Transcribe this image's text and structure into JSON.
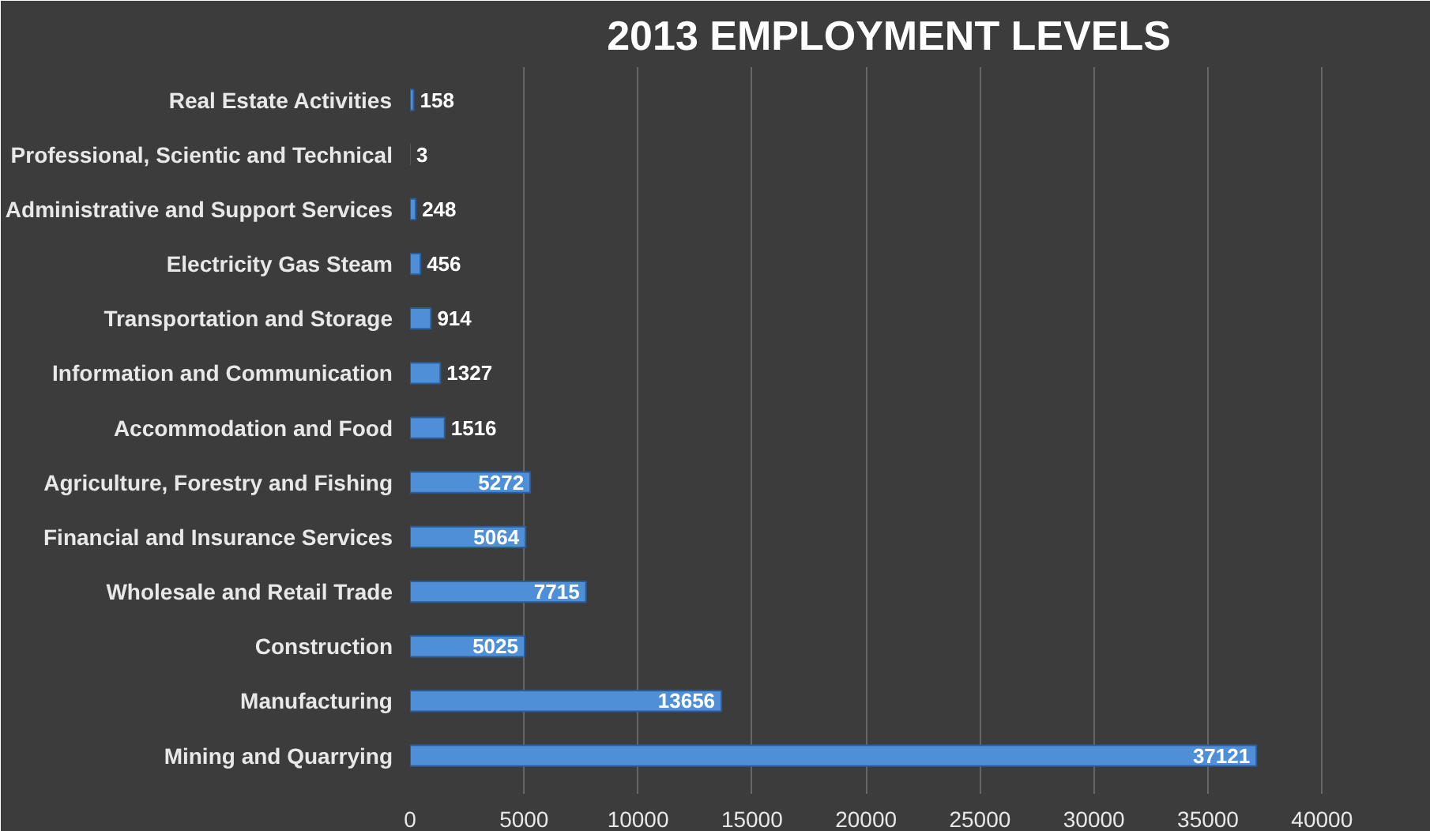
{
  "chart_data": {
    "type": "bar",
    "orientation": "horizontal",
    "title": "2013 EMPLOYMENT LEVELS",
    "categories": [
      "Real Estate Activities",
      "Professional, Scientic and Technical",
      "Administrative and Support Services",
      "Electricity Gas Steam",
      "Transportation and Storage",
      "Information and Communication",
      "Accommodation and Food",
      "Agriculture, Forestry and Fishing",
      "Financial and Insurance Services",
      "Wholesale and Retail Trade",
      "Construction",
      "Manufacturing",
      "Mining and Quarrying"
    ],
    "values": [
      158,
      3,
      248,
      456,
      914,
      1327,
      1516,
      5272,
      5064,
      7715,
      5025,
      13656,
      37121
    ],
    "color": "#4f8fd8",
    "xlim": [
      0,
      42000
    ],
    "xticks": [
      0,
      5000,
      10000,
      15000,
      20000,
      25000,
      30000,
      35000,
      40000
    ],
    "grid": "x",
    "data_labels": true
  }
}
